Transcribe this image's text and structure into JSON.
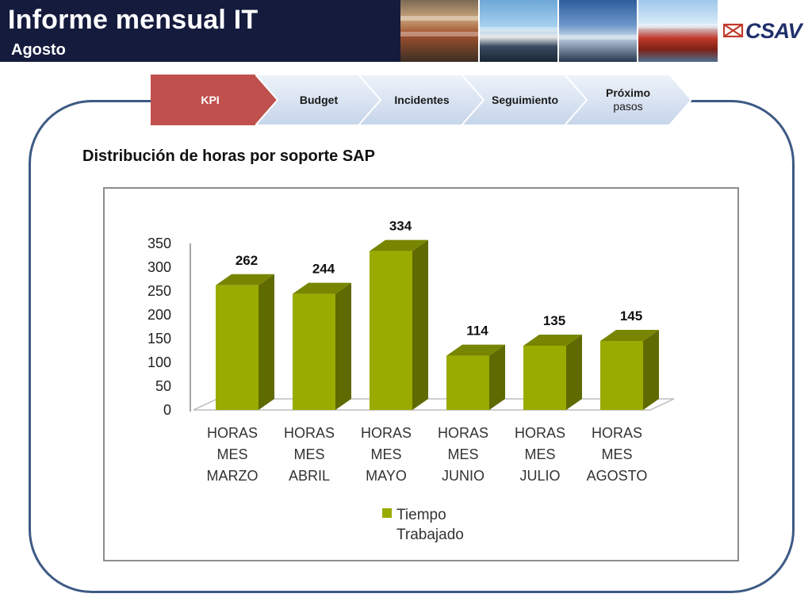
{
  "header": {
    "title": "Informe mensual IT",
    "subtitle": "Agosto",
    "logo_text": "CSAV",
    "colors": {
      "title_bg": "#141b3d",
      "logo": "#1f2f6b"
    }
  },
  "process": {
    "steps": [
      {
        "label": "KPI",
        "active": true
      },
      {
        "label": "Budget",
        "active": false
      },
      {
        "label": "Incidentes",
        "active": false
      },
      {
        "label": "Seguimiento",
        "active": false
      },
      {
        "label_bold": "Próximo",
        "label_light": "pasos",
        "active": false
      }
    ],
    "colors": {
      "active": "#c0504d",
      "inactive": "#dce6f2"
    }
  },
  "chart_title": "Distribución de horas por soporte SAP",
  "chart_data": {
    "type": "bar",
    "categories": [
      [
        "HORAS",
        "MES",
        "MARZO"
      ],
      [
        "HORAS",
        "MES",
        "ABRIL"
      ],
      [
        "HORAS",
        "MES",
        "MAYO"
      ],
      [
        "HORAS",
        "MES",
        "JUNIO"
      ],
      [
        "HORAS",
        "MES",
        "JULIO"
      ],
      [
        "HORAS",
        "MES",
        "AGOSTO"
      ]
    ],
    "series": [
      {
        "name": "Tiempo Trabajado",
        "values": [
          262,
          244,
          334,
          114,
          135,
          145
        ],
        "color": "#9aab00"
      }
    ],
    "ylim": [
      0,
      350
    ],
    "yticks": [
      "350",
      "300",
      "250",
      "200",
      "150",
      "100",
      "50",
      "0"
    ],
    "legend": {
      "lines": [
        "Tiempo",
        "Trabajado"
      ],
      "position": "bottom"
    },
    "grid": false,
    "style": "3d-column"
  }
}
